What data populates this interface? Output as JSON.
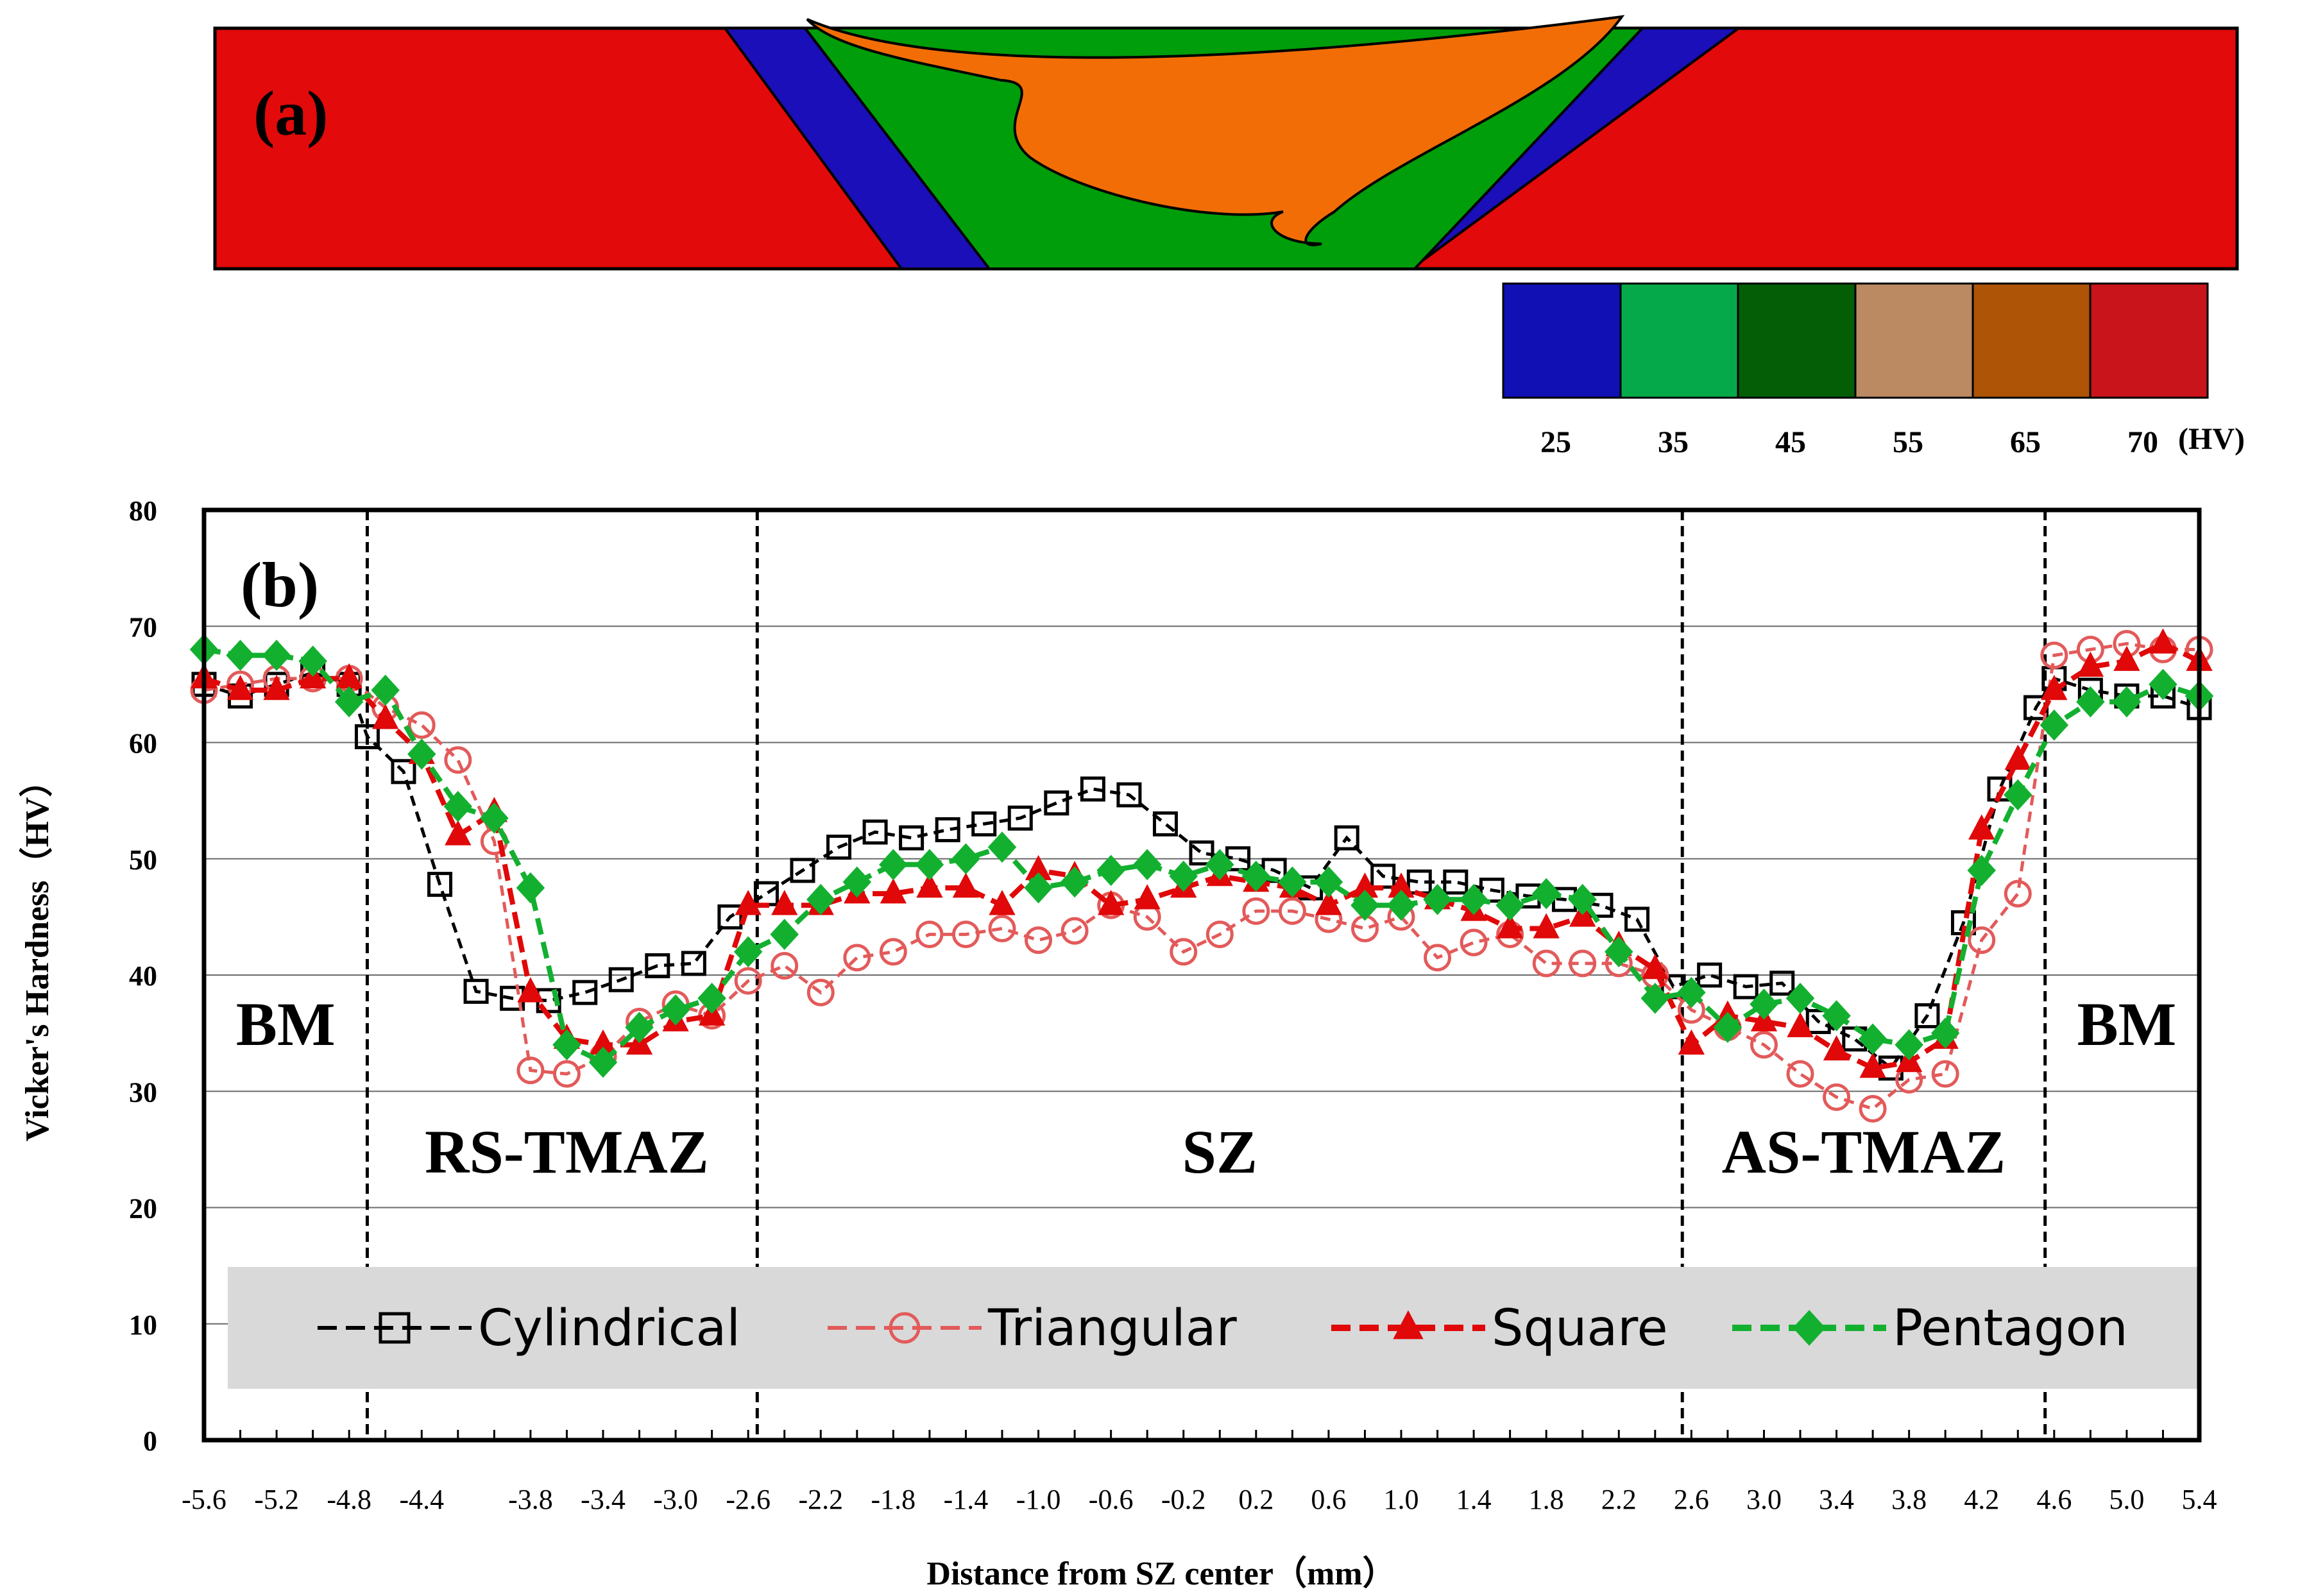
{
  "panel_a": {
    "label": "(a)",
    "colorbar": {
      "unit": "(HV)",
      "entries": [
        {
          "value": "25",
          "color": "#1010b4"
        },
        {
          "value": "35",
          "color": "#06a94a"
        },
        {
          "value": "45",
          "color": "#045e06"
        },
        {
          "value": "55",
          "color": "#bb8a62"
        },
        {
          "value": "65",
          "color": "#ae5406"
        },
        {
          "value": "70",
          "color": "#c8141a"
        }
      ]
    },
    "zone_colors": {
      "bm": "#e20a0a",
      "tmaz": "#1a0fb8",
      "haz": "#009e0a",
      "sz": "#f26d06"
    }
  },
  "chart_data": {
    "type": "line",
    "panel_label": "(b)",
    "title": "",
    "xlabel": "Distance from SZ center（mm）",
    "ylabel": "Vicker's Hardness（HV）",
    "xlim": [
      -5.6,
      5.4
    ],
    "ylim": [
      0,
      80
    ],
    "yticks": [
      "0",
      "10",
      "20",
      "30",
      "40",
      "50",
      "60",
      "70",
      "80"
    ],
    "xtick_values": [
      -5.6,
      -5.2,
      -4.8,
      -4.4,
      -3.8,
      -3.4,
      -3.0,
      -2.6,
      -2.2,
      -1.8,
      -1.4,
      -1.0,
      -0.6,
      -0.2,
      0.2,
      0.6,
      1.0,
      1.4,
      1.8,
      2.2,
      2.6,
      3.0,
      3.4,
      3.8,
      4.2,
      4.6,
      5.0,
      5.4
    ],
    "xticks": [
      "-5.6",
      "-5.2",
      "-4.8",
      "-4.4",
      "-3.8",
      "-3.4",
      "-3.0",
      "-2.6",
      "-2.2",
      "-1.8",
      "-1.4",
      "-1.0",
      "-0.6",
      "-0.2",
      "0.2",
      "0.6",
      "1.0",
      "1.4",
      "1.8",
      "2.2",
      "2.6",
      "3.0",
      "3.4",
      "3.8",
      "4.2",
      "4.6",
      "5.0",
      "5.4"
    ],
    "grid": "horizontal",
    "legend": "bottom",
    "boundaries": [
      -4.7,
      -2.55,
      2.55,
      4.55
    ],
    "regions": [
      {
        "label": "BM",
        "x": -5.15,
        "y": 34
      },
      {
        "label": "RS-TMAZ",
        "x": -3.6,
        "y": 23
      },
      {
        "label": "SZ",
        "x": 0.0,
        "y": 23
      },
      {
        "label": "AS-TMAZ",
        "x": 3.55,
        "y": 23
      },
      {
        "label": "BM",
        "x": 5.0,
        "y": 34
      }
    ],
    "series": [
      {
        "name": "Cylindrical",
        "color": "#000000",
        "marker": "square",
        "x": [
          -5.6,
          -5.4,
          -5.2,
          -5.0,
          -4.8,
          -4.7,
          -4.5,
          -4.3,
          -4.1,
          -3.9,
          -3.7,
          -3.5,
          -3.3,
          -3.1,
          -2.9,
          -2.7,
          -2.5,
          -2.3,
          -2.1,
          -1.9,
          -1.7,
          -1.5,
          -1.3,
          -1.1,
          -0.9,
          -0.7,
          -0.5,
          -0.3,
          -0.1,
          0.1,
          0.3,
          0.5,
          0.7,
          0.9,
          1.1,
          1.3,
          1.5,
          1.7,
          1.9,
          2.1,
          2.3,
          2.5,
          2.7,
          2.9,
          3.1,
          3.3,
          3.5,
          3.7,
          3.9,
          4.1,
          4.3,
          4.5,
          4.6,
          4.8,
          5.0,
          5.2,
          5.4
        ],
        "y": [
          65.0,
          64.0,
          65.0,
          66.0,
          65.0,
          60.5,
          57.5,
          47.8,
          38.6,
          38.0,
          37.8,
          38.5,
          39.6,
          40.8,
          41.0,
          45.0,
          47.0,
          49.0,
          51.0,
          52.3,
          51.8,
          52.5,
          53.0,
          53.5,
          54.8,
          56.0,
          55.5,
          53.0,
          50.5,
          50.0,
          49.0,
          47.5,
          51.8,
          48.5,
          48.0,
          48.0,
          47.3,
          46.8,
          46.5,
          46.0,
          44.8,
          39.0,
          40.0,
          39.0,
          39.3,
          36.0,
          34.5,
          32.0,
          36.5,
          44.5,
          56.0,
          63.0,
          65.5,
          64.5,
          64.0,
          64.0,
          63.0
        ]
      },
      {
        "name": "Triangular",
        "color": "#e35a5a",
        "marker": "circle",
        "x": [
          -5.6,
          -5.4,
          -5.2,
          -5.0,
          -4.8,
          -4.6,
          -4.4,
          -4.2,
          -4.0,
          -3.8,
          -3.6,
          -3.4,
          -3.2,
          -3.0,
          -2.8,
          -2.6,
          -2.4,
          -2.2,
          -2.0,
          -1.8,
          -1.6,
          -1.4,
          -1.2,
          -1.0,
          -0.8,
          -0.6,
          -0.4,
          -0.2,
          0.0,
          0.2,
          0.4,
          0.6,
          0.8,
          1.0,
          1.2,
          1.4,
          1.6,
          1.8,
          2.0,
          2.2,
          2.4,
          2.6,
          2.8,
          3.0,
          3.2,
          3.4,
          3.6,
          3.8,
          4.0,
          4.2,
          4.4,
          4.6,
          4.8,
          5.0,
          5.2,
          5.4
        ],
        "y": [
          64.5,
          65.0,
          65.5,
          65.5,
          65.5,
          63.0,
          61.5,
          58.5,
          51.5,
          31.8,
          31.5,
          33.0,
          36.0,
          37.5,
          36.5,
          39.5,
          40.8,
          38.5,
          41.5,
          42.0,
          43.5,
          43.5,
          44.0,
          43.0,
          43.8,
          46.0,
          45.0,
          42.0,
          43.5,
          45.5,
          45.5,
          44.8,
          44.0,
          45.0,
          41.5,
          42.8,
          43.5,
          41.0,
          41.0,
          41.0,
          40.0,
          37.0,
          35.5,
          34.0,
          31.5,
          29.5,
          28.5,
          31.0,
          31.5,
          43.0,
          47.0,
          67.5,
          68.0,
          68.5,
          68.0,
          68.0
        ]
      },
      {
        "name": "Square",
        "color": "#e00808",
        "marker": "triangle",
        "x": [
          -5.6,
          -5.4,
          -5.2,
          -5.0,
          -4.8,
          -4.6,
          -4.4,
          -4.2,
          -4.0,
          -3.8,
          -3.6,
          -3.4,
          -3.2,
          -3.0,
          -2.8,
          -2.6,
          -2.4,
          -2.2,
          -2.0,
          -1.8,
          -1.6,
          -1.4,
          -1.2,
          -1.0,
          -0.8,
          -0.6,
          -0.4,
          -0.2,
          0.0,
          0.2,
          0.4,
          0.6,
          0.8,
          1.0,
          1.2,
          1.4,
          1.6,
          1.8,
          2.0,
          2.2,
          2.4,
          2.6,
          2.8,
          3.0,
          3.2,
          3.4,
          3.6,
          3.8,
          4.0,
          4.2,
          4.4,
          4.6,
          4.8,
          5.0,
          5.2,
          5.4
        ],
        "y": [
          65.5,
          64.5,
          64.5,
          65.5,
          65.5,
          62.0,
          59.0,
          52.0,
          54.0,
          38.5,
          34.5,
          34.0,
          34.0,
          36.0,
          36.5,
          46.0,
          46.0,
          46.0,
          47.0,
          47.0,
          47.5,
          47.5,
          46.0,
          49.0,
          48.5,
          46.0,
          46.5,
          47.5,
          48.5,
          48.0,
          47.5,
          46.0,
          47.5,
          47.5,
          46.5,
          45.5,
          44.0,
          44.0,
          45.0,
          42.5,
          40.5,
          34.0,
          36.5,
          36.0,
          35.5,
          33.5,
          32.0,
          32.5,
          34.5,
          52.5,
          58.5,
          64.5,
          66.5,
          67.0,
          68.5,
          67.0
        ]
      },
      {
        "name": "Pentagon",
        "color": "#13b030",
        "marker": "diamond",
        "x": [
          -5.6,
          -5.4,
          -5.2,
          -5.0,
          -4.8,
          -4.6,
          -4.4,
          -4.2,
          -4.0,
          -3.8,
          -3.6,
          -3.4,
          -3.2,
          -3.0,
          -2.8,
          -2.6,
          -2.4,
          -2.2,
          -2.0,
          -1.8,
          -1.6,
          -1.4,
          -1.2,
          -1.0,
          -0.8,
          -0.6,
          -0.4,
          -0.2,
          0.0,
          0.2,
          0.4,
          0.6,
          0.8,
          1.0,
          1.2,
          1.4,
          1.6,
          1.8,
          2.0,
          2.2,
          2.4,
          2.6,
          2.8,
          3.0,
          3.2,
          3.4,
          3.6,
          3.8,
          4.0,
          4.2,
          4.4,
          4.6,
          4.8,
          5.0,
          5.2,
          5.4
        ],
        "y": [
          68.0,
          67.5,
          67.5,
          67.0,
          63.5,
          64.5,
          59.0,
          54.5,
          53.5,
          47.5,
          34.0,
          32.5,
          35.5,
          37.0,
          38.0,
          42.0,
          43.5,
          46.5,
          48.0,
          49.5,
          49.5,
          50.0,
          51.0,
          47.5,
          48.0,
          49.0,
          49.5,
          48.5,
          49.5,
          48.5,
          48.0,
          48.0,
          46.0,
          46.0,
          46.5,
          46.5,
          46.0,
          47.0,
          46.5,
          42.0,
          38.0,
          38.5,
          35.5,
          37.5,
          38.0,
          36.5,
          34.5,
          34.0,
          35.0,
          49.0,
          55.5,
          61.5,
          63.5,
          63.5,
          65.0,
          64.0
        ]
      }
    ]
  }
}
